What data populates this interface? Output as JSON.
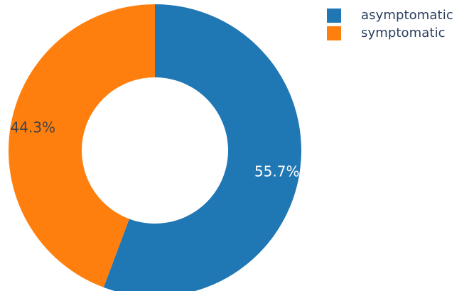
{
  "chart_data": {
    "type": "pie",
    "hole": 0.5,
    "direction": "clockwise",
    "rotation": 90,
    "categories": [
      "asymptomatic",
      "symptomatic"
    ],
    "values": [
      55.7,
      44.3
    ],
    "labels": [
      "55.7%",
      "44.3%"
    ],
    "colors": [
      "#1f77b4",
      "#ff7f0e"
    ],
    "label_colors": [
      "#ffffff",
      "#444444"
    ],
    "legend_position": "top-right"
  },
  "legend": {
    "items": [
      {
        "label": "asymptomatic",
        "color": "#1f77b4"
      },
      {
        "label": "symptomatic",
        "color": "#ff7f0e"
      }
    ]
  }
}
